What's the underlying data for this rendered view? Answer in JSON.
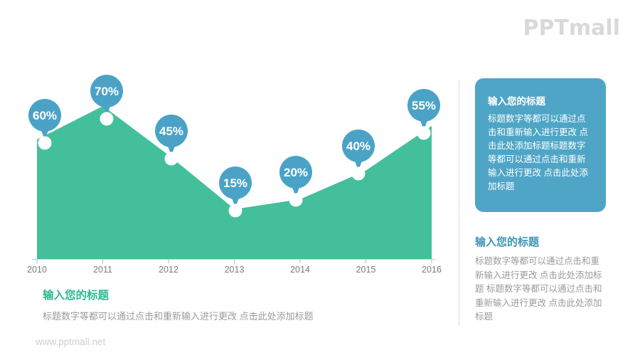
{
  "logo": {
    "text": "PPTmall"
  },
  "chart_data": {
    "type": "area",
    "x": [
      "2010",
      "2011",
      "2012",
      "2013",
      "2014",
      "2015",
      "2016"
    ],
    "values": [
      60,
      70,
      45,
      15,
      20,
      40,
      55
    ],
    "point_labels": [
      "60%",
      "70%",
      "45%",
      "15%",
      "20%",
      "40%",
      "55%"
    ],
    "title": "",
    "xlabel": "",
    "ylabel": "",
    "ylim": [
      0,
      100
    ],
    "grid": false,
    "legend": "none",
    "area_color": "#44BF9B",
    "balloon_color": "#4AA3C6",
    "marker_color": "#ffffff",
    "axis_line_color": "#cccccc",
    "axis_label_color": "#7c7c7c"
  },
  "info_box": {
    "title": "输入您的标题",
    "body": "标题数字等都可以通过点击和重新输入进行更改 点击此处添加标题标题数字等都可以通过点击和重新输入进行更改 点击此处添加标题"
  },
  "right_block": {
    "title": "输入您的标题",
    "body": "标题数字等都可以通过点击和重新输入进行更改 点击此处添加标题 标题数字等都可以通过点击和重新输入进行更改 点击此处添加标题"
  },
  "bottom_block": {
    "title": "输入您的标题",
    "body": "标题数字等都可以通过点击和重新输入进行更改 点击此处添加标题"
  },
  "watermark": {
    "text": "www.pptmall.net"
  },
  "colors": {
    "green_title": "#2CBA8E",
    "blue_title": "#3C96B7",
    "body_gray": "#9b9b9b",
    "logo_gray": "#d9d9d9",
    "divider": "#dcdcdc",
    "box_bg": "#4FA5C6"
  }
}
